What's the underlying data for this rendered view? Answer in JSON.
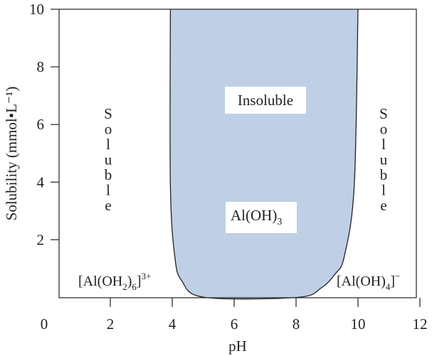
{
  "chart_data": {
    "type": "area",
    "xlabel": "pH",
    "ylabel": "Solubility (mmol•L⁻¹)",
    "xlim": [
      0.33,
      12
    ],
    "ylim": [
      0,
      10
    ],
    "x_ticks": [
      "0",
      "2",
      "4",
      "6",
      "8",
      "10",
      "12"
    ],
    "y_ticks": [
      "2",
      "4",
      "6",
      "8",
      "10"
    ],
    "grid": false,
    "fill_color": "#bfcfe6",
    "region_boundary": [
      [
        3.94,
        10
      ],
      [
        3.94,
        3.9
      ],
      [
        4.08,
        1.44
      ],
      [
        4.31,
        0.57
      ],
      [
        5.05,
        0
      ],
      [
        8.04,
        0
      ],
      [
        8.8,
        0.32
      ],
      [
        9.26,
        0.81
      ],
      [
        9.56,
        1.43
      ],
      [
        9.88,
        3.9
      ],
      [
        10.0,
        10
      ]
    ],
    "annotations": {
      "insoluble": "Insoluble",
      "aloh3": "Al(OH)",
      "aloh3_sub": "3",
      "soluble_left": "Soluble",
      "soluble_right": "Soluble",
      "cation": "[Al(OH",
      "cation_sub1": "2",
      "cation_mid": ")",
      "cation_sub2": "6",
      "cation_end": "]",
      "cation_sup": "3+",
      "anion": "[Al(OH)",
      "anion_sub": "4",
      "anion_end": "]",
      "anion_sup": "−"
    }
  }
}
